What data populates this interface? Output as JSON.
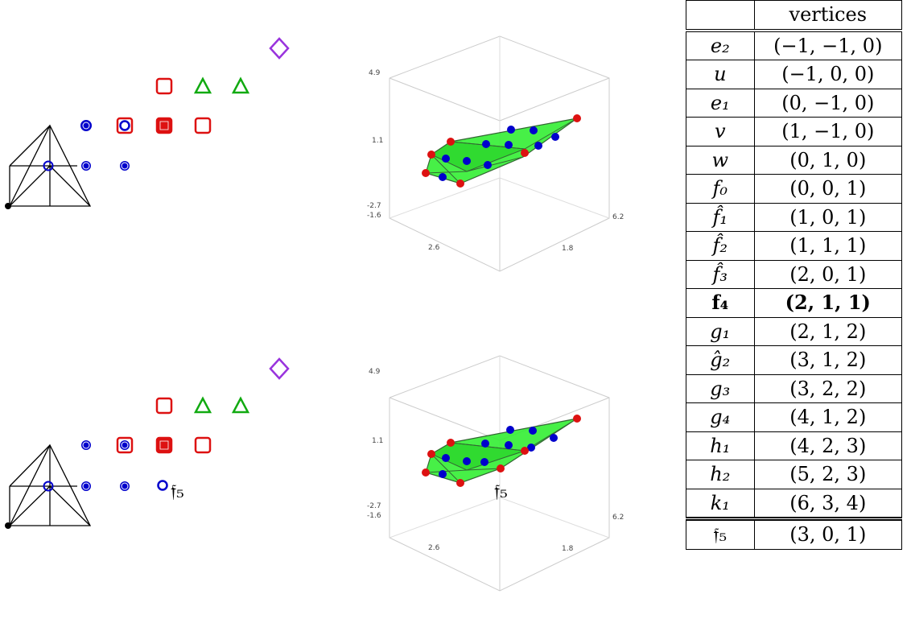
{
  "table": {
    "header": [
      "",
      "vertices"
    ],
    "rows": [
      {
        "sym": "e₂",
        "val": "(−1, −1, 0)"
      },
      {
        "sym": "u",
        "val": "(−1, 0, 0)"
      },
      {
        "sym": "e₁",
        "val": "(0, −1, 0)"
      },
      {
        "sym": "v",
        "val": "(1, −1, 0)"
      },
      {
        "sym": "w",
        "val": "(0, 1, 0)"
      },
      {
        "sym": "f₀",
        "val": "(0, 0, 1)"
      },
      {
        "sym": "f̂₁",
        "val": "(1, 0, 1)"
      },
      {
        "sym": "f̂₂",
        "val": "(1, 1, 1)"
      },
      {
        "sym": "f̂₃",
        "val": "(2, 0, 1)"
      },
      {
        "sym": "f₄",
        "val": "(2, 1, 1)"
      },
      {
        "sym": "g₁",
        "val": "(2, 1, 2)"
      },
      {
        "sym": "ĝ₂",
        "val": "(3, 1, 2)"
      },
      {
        "sym": "g₃",
        "val": "(3, 2, 2)"
      },
      {
        "sym": "g₄",
        "val": "(4, 1, 2)"
      },
      {
        "sym": "h₁",
        "val": "(4, 2, 3)"
      },
      {
        "sym": "h₂",
        "val": "(5, 2, 3)"
      },
      {
        "sym": "k₁",
        "val": "(6, 3, 4)"
      },
      {
        "sym": "𝔣₅",
        "val": "(3, 0, 1)"
      }
    ]
  },
  "labels": {
    "f5_left": "𝔣₅",
    "f5_plot": "𝔣₅"
  },
  "plot_ticks": {
    "z_top": "4.9",
    "z_mid": "1.1",
    "z_bot": "-2.7",
    "x_left": "-1.6",
    "x_mid": "2.6",
    "y_mid": "1.8",
    "y_right": "6.2"
  },
  "colors": {
    "blue": "#0000cc",
    "red": "#dd1111",
    "green": "#11aa11",
    "purple": "#9933dd",
    "hull_fill": "#33ee33"
  }
}
